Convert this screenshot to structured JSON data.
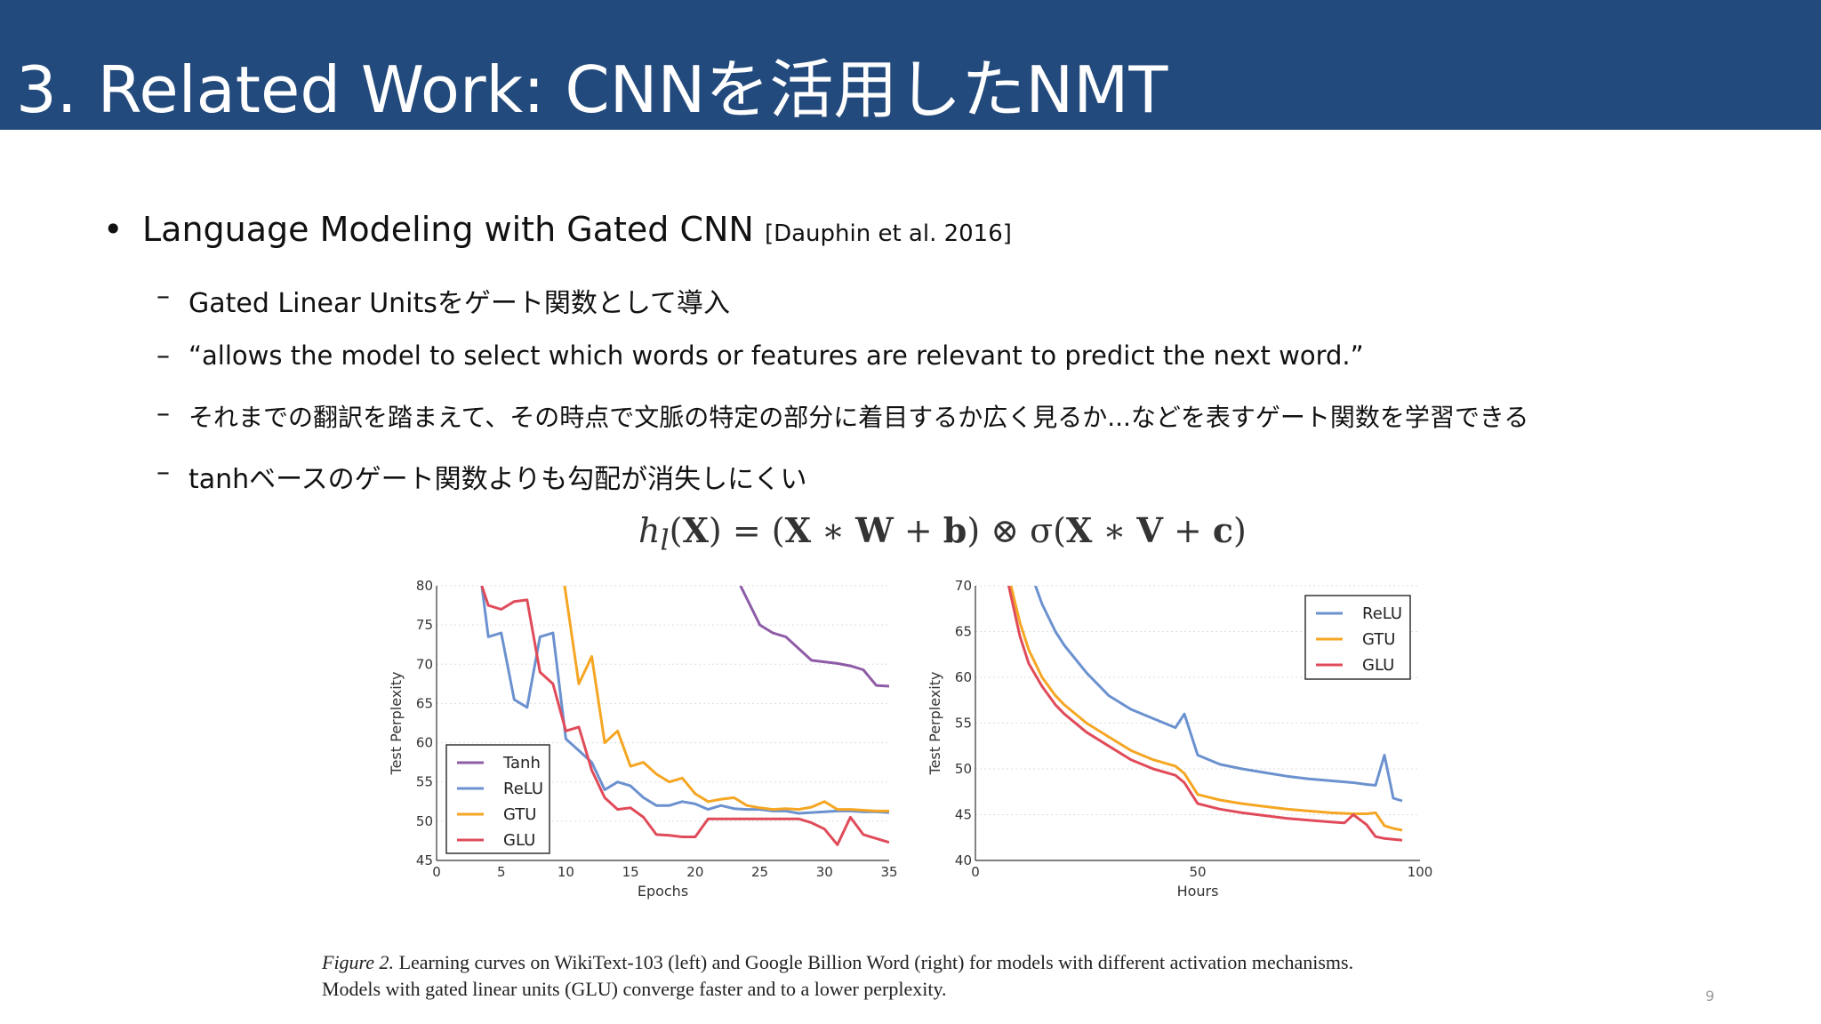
{
  "slide": {
    "title": "3. Related Work: CNNを活用したNMT",
    "page_number": "9",
    "colors": {
      "header_bg": "#234a7c",
      "title_text": "#ffffff"
    }
  },
  "bullets": {
    "main": {
      "marker": "•",
      "text": "Language Modeling with Gated CNN",
      "citation": "[Dauphin et al. 2016]"
    },
    "subs": [
      {
        "marker": "–",
        "text": "Gated Linear Unitsをゲート関数として導入"
      },
      {
        "marker": "–",
        "text": "“allows the model to select which words or features are relevant to predict the next word.”"
      },
      {
        "marker": "–",
        "text": "それまでの翻訳を踏まえて、その時点で文脈の特定の部分に着目するか広く見るか...などを表すゲート関数を学習できる"
      },
      {
        "marker": "–",
        "text": "tanhベースのゲート関数よりも勾配が消失しにくい"
      }
    ]
  },
  "formula": {
    "lhs": "h",
    "lhs_sub": "l",
    "arg": "X",
    "eq": " = (",
    "X": "X",
    "star": " ∗ ",
    "W": "W",
    "plus": " + ",
    "b": "b",
    "otimes": ") ⊗ σ(",
    "V": "V",
    "c": "c",
    "close": ")"
  },
  "chart_data": [
    {
      "type": "line",
      "xlabel": "Epochs",
      "ylabel": "Test Perplexity",
      "xlim": [
        0,
        35
      ],
      "ylim": [
        45,
        80
      ],
      "xticks": [
        0,
        5,
        10,
        15,
        20,
        25,
        30,
        35
      ],
      "yticks": [
        45,
        50,
        55,
        60,
        65,
        70,
        75,
        80
      ],
      "grid": true,
      "legend_position": "bottom-left",
      "series": [
        {
          "name": "Tanh",
          "color": "#8e5ba6",
          "x": [
            23.5,
            25,
            26,
            27,
            28,
            29,
            30,
            31,
            32,
            33,
            34,
            35
          ],
          "y": [
            80,
            75,
            74,
            73.5,
            72,
            70.5,
            70.3,
            70.1,
            69.8,
            69.3,
            67.3,
            67.2
          ]
        },
        {
          "name": "ReLU",
          "color": "#6b91cf",
          "x": [
            3.5,
            4,
            5,
            6,
            7,
            8,
            9,
            10,
            11,
            12,
            13,
            14,
            15,
            16,
            17,
            18,
            19,
            20,
            21,
            22,
            23,
            24,
            25,
            26,
            27,
            28,
            29,
            30,
            31,
            32,
            33,
            34,
            35
          ],
          "y": [
            80,
            73.5,
            74,
            65.5,
            64.5,
            73.5,
            74,
            60.5,
            59,
            57.5,
            54,
            55,
            54.5,
            53,
            52,
            52,
            52.5,
            52.2,
            51.5,
            52,
            51.6,
            51.5,
            51.5,
            51.3,
            51.3,
            51,
            51.1,
            51.2,
            51.3,
            51.3,
            51.2,
            51.2,
            51.1
          ]
        },
        {
          "name": "GTU",
          "color": "#f5a623",
          "x": [
            9.9,
            11,
            12,
            13,
            14,
            15,
            16,
            17,
            18,
            19,
            20,
            21,
            22,
            23,
            24,
            25,
            26,
            27,
            28,
            29,
            30,
            31,
            32,
            33,
            34,
            35
          ],
          "y": [
            80,
            67.5,
            71,
            60,
            61.5,
            57,
            57.5,
            56,
            55,
            55.5,
            53.5,
            52.5,
            52.8,
            53,
            52,
            51.7,
            51.5,
            51.6,
            51.5,
            51.8,
            52.5,
            51.5,
            51.5,
            51.4,
            51.3,
            51.3
          ]
        },
        {
          "name": "GLU",
          "color": "#e04b5a",
          "x": [
            3.5,
            4,
            5,
            6,
            7,
            8,
            9,
            10,
            11,
            12,
            13,
            14,
            15,
            16,
            17,
            18,
            19,
            20,
            21,
            22,
            23,
            24,
            25,
            26,
            27,
            28,
            29,
            30,
            31,
            32,
            33,
            34,
            35
          ],
          "y": [
            80,
            77.5,
            77,
            78,
            78.2,
            69,
            67.5,
            61.5,
            62,
            56.5,
            53,
            51.5,
            51.7,
            50.5,
            48.3,
            48.2,
            48,
            48,
            50.3,
            50.3,
            50.3,
            50.3,
            50.3,
            50.3,
            50.3,
            50.3,
            49.8,
            49,
            47,
            50.5,
            48.3,
            47.8,
            47.3
          ]
        }
      ]
    },
    {
      "type": "line",
      "xlabel": "Hours",
      "ylabel": "Test Perplexity",
      "xlim": [
        0,
        100
      ],
      "ylim": [
        40,
        70
      ],
      "xticks": [
        0,
        50,
        100
      ],
      "yticks": [
        40,
        45,
        50,
        55,
        60,
        65,
        70
      ],
      "grid": true,
      "legend_position": "top-right",
      "series": [
        {
          "name": "ReLU",
          "color": "#6b91cf",
          "x": [
            13.5,
            15,
            18,
            20,
            25,
            30,
            35,
            40,
            45,
            47,
            50,
            55,
            60,
            65,
            70,
            75,
            80,
            85,
            88,
            90,
            92,
            94,
            96
          ],
          "y": [
            70,
            68,
            65,
            63.5,
            60.5,
            58,
            56.5,
            55.5,
            54.5,
            56,
            51.5,
            50.5,
            50,
            49.6,
            49.2,
            48.9,
            48.7,
            48.5,
            48.3,
            48.2,
            51.5,
            46.8,
            46.5
          ]
        },
        {
          "name": "GTU",
          "color": "#f5a623",
          "x": [
            8,
            10,
            12,
            15,
            18,
            20,
            25,
            30,
            35,
            40,
            45,
            47,
            50,
            55,
            60,
            65,
            70,
            75,
            80,
            85,
            88,
            90,
            92,
            94,
            96
          ],
          "y": [
            70,
            66,
            63,
            60,
            58,
            57,
            55,
            53.5,
            52,
            51,
            50.3,
            49.5,
            47.2,
            46.6,
            46.2,
            45.9,
            45.6,
            45.4,
            45.2,
            45.1,
            45.1,
            45.2,
            43.8,
            43.5,
            43.3
          ]
        },
        {
          "name": "GLU",
          "color": "#e04b5a",
          "x": [
            7.5,
            10,
            12,
            15,
            18,
            20,
            25,
            30,
            35,
            40,
            45,
            47,
            50,
            55,
            60,
            65,
            70,
            75,
            80,
            83,
            85,
            88,
            90,
            92,
            94,
            96
          ],
          "y": [
            70,
            64.5,
            61.5,
            59,
            57,
            56,
            54,
            52.5,
            51,
            50,
            49.3,
            48.5,
            46.2,
            45.6,
            45.2,
            44.9,
            44.6,
            44.4,
            44.2,
            44.1,
            45,
            43.9,
            42.6,
            42.4,
            42.3,
            42.2
          ]
        }
      ]
    }
  ],
  "caption": {
    "figure_label": "Figure 2.",
    "line1": " Learning curves on WikiText-103 (left) and Google Billion Word (right) for models with different activation mechanisms.",
    "line2": "Models with gated linear units (GLU) converge faster and to a lower perplexity."
  }
}
